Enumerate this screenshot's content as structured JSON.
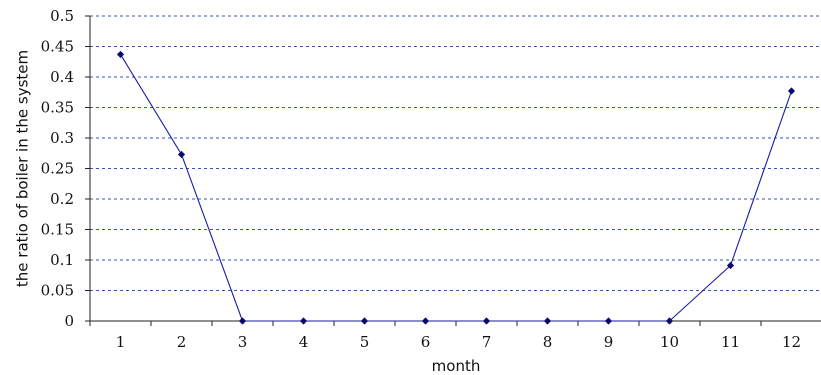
{
  "chart_data": {
    "type": "line",
    "xlabel": "month",
    "ylabel": "the ratio of boiler in the system",
    "categories": [
      "1",
      "2",
      "3",
      "4",
      "5",
      "6",
      "7",
      "8",
      "9",
      "10",
      "11",
      "12"
    ],
    "series": [
      {
        "values": [
          0.437,
          0.273,
          0,
          0,
          0,
          0,
          0,
          0,
          0,
          0,
          0.091,
          0.377
        ]
      }
    ],
    "ylim": [
      0,
      0.5
    ],
    "yticks": [
      "0",
      "0.05",
      "0.1",
      "0.15",
      "0.2",
      "0.25",
      "0.3",
      "0.35",
      "0.4",
      "0.45",
      "0.5"
    ],
    "grid": true,
    "legend": "none",
    "colors": {
      "line": "#1a1aa6",
      "marker": "#0a0a6e",
      "grid": "#3355bb"
    }
  }
}
